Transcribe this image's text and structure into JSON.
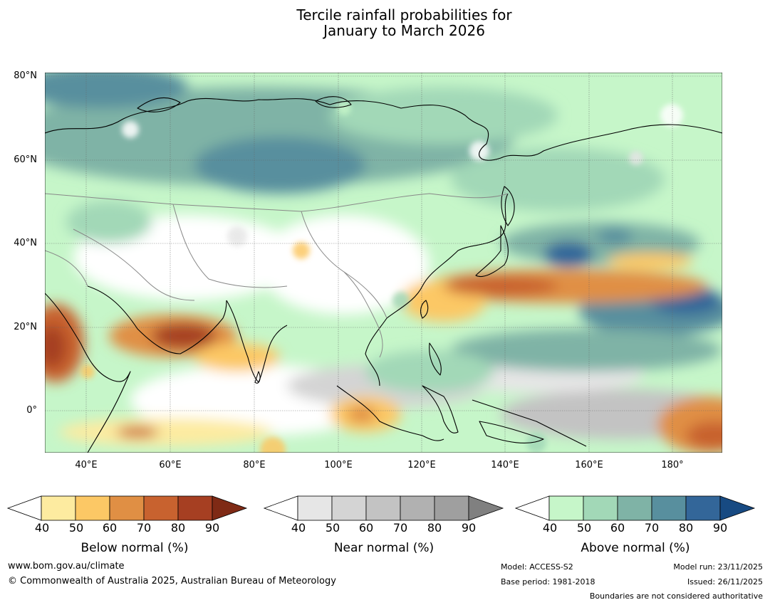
{
  "title": {
    "line1": "Tercile rainfall probabilities for",
    "line2": "January to March 2026"
  },
  "map": {
    "lat_labels": [
      "80°N",
      "60°N",
      "40°N",
      "20°N",
      "0°"
    ],
    "lon_labels": [
      "40°E",
      "60°E",
      "80°E",
      "100°E",
      "120°E",
      "140°E",
      "160°E",
      "180°"
    ]
  },
  "colorbars": [
    {
      "name": "below",
      "title": "Below normal (%)",
      "ticks": [
        "40",
        "50",
        "60",
        "70",
        "80",
        "90"
      ],
      "colors": [
        "#ffffff",
        "#fdeba0",
        "#fcc865",
        "#e08f44",
        "#c8622f",
        "#a63f22",
        "#7f2a15"
      ]
    },
    {
      "name": "near",
      "title": "Near normal (%)",
      "ticks": [
        "40",
        "50",
        "60",
        "70",
        "80",
        "90"
      ],
      "colors": [
        "#ffffff",
        "#e6e6e6",
        "#d4d4d4",
        "#c3c3c3",
        "#b1b1b1",
        "#9f9f9f",
        "#808080"
      ]
    },
    {
      "name": "above",
      "title": "Above normal (%)",
      "ticks": [
        "40",
        "50",
        "60",
        "70",
        "80",
        "90"
      ],
      "colors": [
        "#ffffff",
        "#c6f6c9",
        "#a2d8b7",
        "#7fb3a6",
        "#588f9e",
        "#336699",
        "#174a82"
      ]
    }
  ],
  "footer": {
    "website": "www.bom.gov.au/climate",
    "copyright": "© Commonwealth of Australia 2025, Australian Bureau of Meteorology",
    "model": "Model: ACCESS-S2",
    "base_period": "Base period: 1981-2018",
    "model_run": "Model run: 23/11/2025",
    "issued": "Issued: 26/11/2025",
    "boundaries": "Boundaries are not considered authoritative"
  }
}
